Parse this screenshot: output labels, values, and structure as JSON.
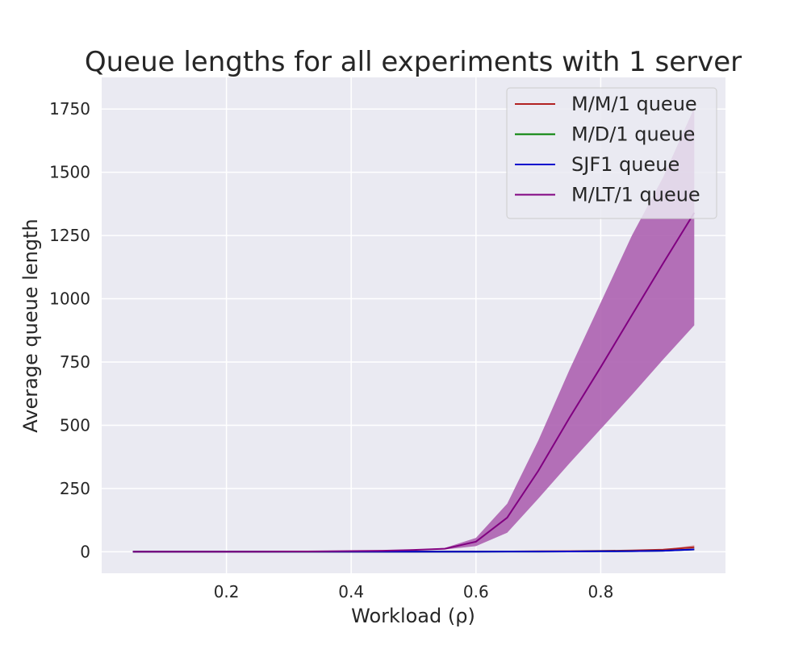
{
  "chart_data": {
    "type": "line",
    "title": "Queue lengths for all experiments with 1 server",
    "xlabel": "Workload (ρ)",
    "ylabel": "Average queue length",
    "xlim": [
      -0.0,
      1.0
    ],
    "ylim": [
      -85,
      1875
    ],
    "x_ticks": [
      0.2,
      0.4,
      0.6,
      0.8
    ],
    "x_tick_labels": [
      "0.2",
      "0.4",
      "0.6",
      "0.8"
    ],
    "y_ticks": [
      0,
      250,
      500,
      750,
      1000,
      1250,
      1500,
      1750
    ],
    "y_tick_labels": [
      "0",
      "250",
      "500",
      "750",
      "1000",
      "1250",
      "1500",
      "1750"
    ],
    "grid": true,
    "background": "#eaeaf2",
    "legend_position": "top-right",
    "x": [
      0.05,
      0.1,
      0.15,
      0.2,
      0.25,
      0.3,
      0.35,
      0.4,
      0.45,
      0.5,
      0.55,
      0.6,
      0.65,
      0.7,
      0.75,
      0.8,
      0.85,
      0.9,
      0.95
    ],
    "series": [
      {
        "name": "M/M/1 queue",
        "color": "#b22222",
        "values": [
          0.0,
          0.01,
          0.03,
          0.05,
          0.08,
          0.13,
          0.19,
          0.27,
          0.37,
          0.5,
          0.67,
          0.9,
          1.2,
          1.6,
          2.3,
          3.2,
          4.8,
          8.1,
          18
        ],
        "band_low": [
          0.0,
          0.01,
          0.03,
          0.05,
          0.08,
          0.13,
          0.19,
          0.27,
          0.37,
          0.5,
          0.67,
          0.9,
          1.2,
          1.6,
          2.3,
          3.2,
          4.8,
          8.1,
          12
        ],
        "band_high": [
          0.0,
          0.01,
          0.03,
          0.05,
          0.08,
          0.13,
          0.19,
          0.27,
          0.37,
          0.5,
          0.67,
          0.9,
          1.2,
          1.6,
          2.3,
          3.2,
          4.8,
          8.1,
          26
        ]
      },
      {
        "name": "M/D/1 queue",
        "color": "#008000",
        "values": [
          0.0,
          0.0,
          0.01,
          0.02,
          0.04,
          0.06,
          0.09,
          0.13,
          0.18,
          0.25,
          0.34,
          0.45,
          0.6,
          0.8,
          1.1,
          1.6,
          2.4,
          4.0,
          9.0
        ]
      },
      {
        "name": "SJF1 queue",
        "color": "#0000cd",
        "values": [
          0.0,
          0.0,
          0.01,
          0.02,
          0.04,
          0.06,
          0.09,
          0.13,
          0.18,
          0.25,
          0.34,
          0.45,
          0.6,
          0.8,
          1.1,
          1.6,
          2.4,
          4.0,
          9.0
        ]
      },
      {
        "name": "M/LT/1 queue",
        "color": "#800080",
        "band_color": "#ad62b0",
        "values": [
          0.0,
          0.0,
          0.1,
          0.3,
          0.5,
          1.0,
          1.5,
          2.5,
          4.0,
          7.0,
          12,
          40,
          135,
          320,
          530,
          730,
          935,
          1140,
          1340
        ],
        "band_low": [
          0.0,
          0.0,
          0.1,
          0.3,
          0.5,
          1.0,
          1.5,
          2.5,
          4.0,
          6.0,
          9,
          22,
          75,
          210,
          350,
          485,
          620,
          760,
          895
        ],
        "band_high": [
          0.0,
          0.0,
          0.1,
          0.3,
          0.5,
          1.0,
          1.5,
          2.5,
          4.0,
          8.0,
          15,
          55,
          190,
          440,
          720,
          985,
          1250,
          1480,
          1755
        ]
      }
    ]
  }
}
